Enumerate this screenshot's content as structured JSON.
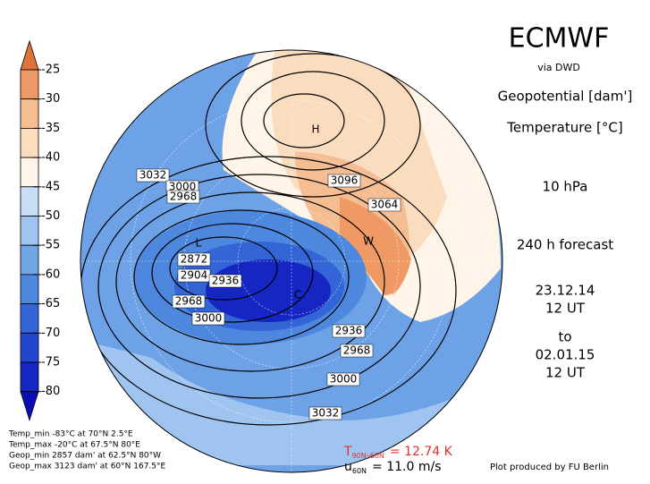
{
  "header": {
    "title": "ECMWF",
    "source": "via DWD",
    "field1": "Geopotential [dam']",
    "field2": "Temperature [°C]",
    "level": "10 hPa",
    "forecast": "240 h forecast",
    "start_date": "23.12.14",
    "start_time": "12 UT",
    "to": "to",
    "end_date": "02.01.15",
    "end_time": "12 UT"
  },
  "colorbar": {
    "labels": [
      "-25",
      "-30",
      "-35",
      "-40",
      "-45",
      "-50",
      "-55",
      "-60",
      "-65",
      "-70",
      "-75",
      "-80"
    ],
    "colors": [
      "#e0733a",
      "#ef9a64",
      "#f5bd92",
      "#fadcbf",
      "#fff4e8",
      "#c8ddf6",
      "#9fc4ef",
      "#73a6e7",
      "#4d87de",
      "#3365d6",
      "#2246ce",
      "#1526c2",
      "#0a0db2"
    ]
  },
  "stats": [
    "Temp_min -83°C at 70°N 2.5°E",
    "Temp_max -20°C at 67.5°N 80°E",
    "Geop_min 2857 dam' at 62.5°N 80°W",
    "Geop_max 3123 dam' at 60°N 167.5°E"
  ],
  "indices": {
    "t_symbol": "T",
    "t_sub": "90N–60N",
    "t_value": "= 12.74 K",
    "u_symbol": "u",
    "u_sub": "60N",
    "u_value": "= 11.0 m/s"
  },
  "credit": "Plot produced by FU Berlin",
  "map_labels": [
    "3032",
    "3000",
    "2968",
    "2872",
    "2904",
    "2936",
    "2968",
    "3000",
    "3096",
    "3064",
    "2936",
    "2968",
    "3000",
    "3032",
    "H",
    "L",
    "W",
    "C"
  ]
}
